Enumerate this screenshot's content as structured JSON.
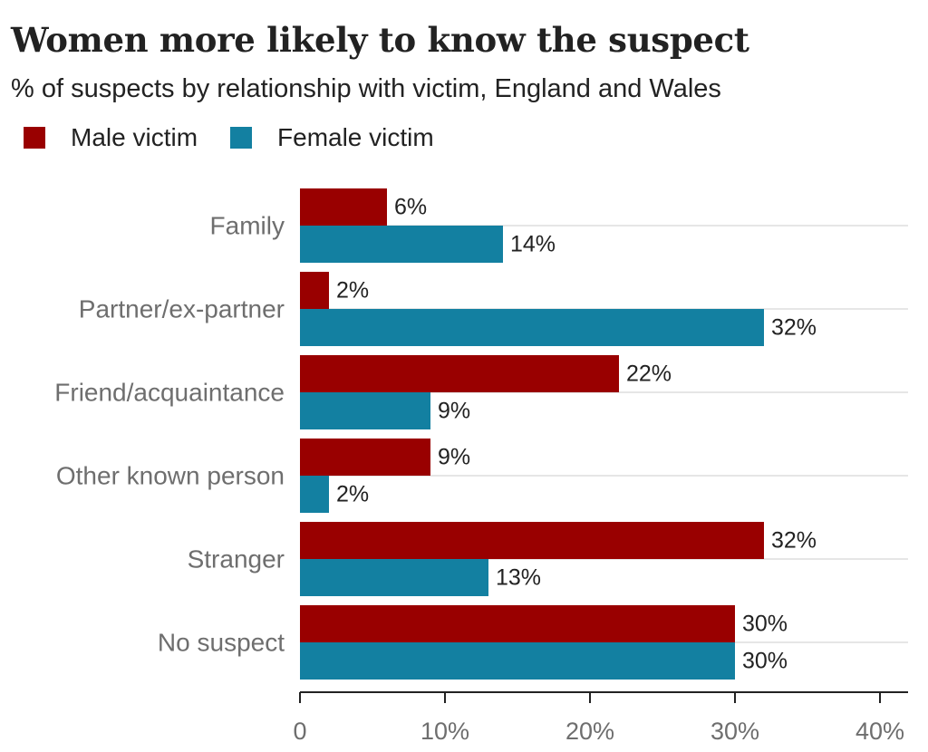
{
  "title": "Women more likely to know the suspect",
  "subtitle": "% of suspects by relationship with victim, England and Wales",
  "colors": {
    "male": "#990000",
    "female": "#1380a1",
    "grid": "#cccccc",
    "axis": "#222222",
    "text": "#222222",
    "category_text": "#6e6e6e"
  },
  "chart_data": {
    "type": "bar",
    "orientation": "horizontal",
    "categories": [
      "Family",
      "Partner/ex-partner",
      "Friend/acquaintance",
      "Other known person",
      "Stranger",
      "No suspect"
    ],
    "series": [
      {
        "name": "Male victim",
        "color": "#990000",
        "values": [
          6,
          2,
          22,
          9,
          32,
          30
        ],
        "labels": [
          "6%",
          "2%",
          "22%",
          "9%",
          "32%",
          "30%"
        ]
      },
      {
        "name": "Female victim",
        "color": "#1380a1",
        "values": [
          14,
          32,
          9,
          2,
          13,
          30
        ],
        "labels": [
          "14%",
          "32%",
          "9%",
          "2%",
          "13%",
          "30%"
        ]
      }
    ],
    "x_ticks": [
      0,
      10,
      20,
      30,
      40
    ],
    "x_tick_labels": [
      "0",
      "10%",
      "20%",
      "30%",
      "40%"
    ],
    "xlim": [
      0,
      42
    ],
    "legend_position": "top-left",
    "grid": true
  }
}
